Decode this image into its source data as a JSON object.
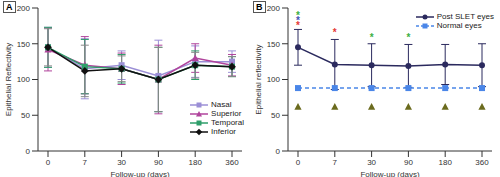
{
  "chart_data": [
    {
      "type": "line",
      "title": "A",
      "x_label": "Follow-up (days)",
      "y_label": "Epithelial Reflectivity",
      "categories": [
        "0",
        "7",
        "30",
        "90",
        "180",
        "360"
      ],
      "ylim": [
        0,
        200
      ],
      "yticks": [
        0,
        50,
        100,
        150,
        200
      ],
      "grid": false,
      "legend": "lower right",
      "series": [
        {
          "name": "Nasal",
          "color": "#9b8fd6",
          "marker": "square",
          "line_style": "solid",
          "values": [
            145,
            115,
            120,
            105,
            125,
            125
          ],
          "errors": [
            28,
            42,
            20,
            50,
            22,
            15
          ]
        },
        {
          "name": "Superior",
          "color": "#b0449c",
          "marker": "triangle",
          "line_style": "solid",
          "values": [
            142,
            120,
            115,
            100,
            130,
            120
          ],
          "errors": [
            30,
            40,
            22,
            48,
            20,
            15
          ]
        },
        {
          "name": "Temporal",
          "color": "#2e9e6a",
          "marker": "square",
          "line_style": "solid",
          "values": [
            145,
            118,
            115,
            100,
            120,
            118
          ],
          "errors": [
            28,
            38,
            20,
            45,
            20,
            14
          ]
        },
        {
          "name": "Inferior",
          "color": "#111111",
          "marker": "diamond",
          "line_style": "solid",
          "values": [
            145,
            112,
            115,
            100,
            120,
            118
          ],
          "errors": [
            26,
            36,
            18,
            45,
            18,
            14
          ]
        }
      ]
    },
    {
      "type": "line",
      "title": "B",
      "x_label": "Follow-up (days)",
      "y_label": "Epithelial reflectivity",
      "categories": [
        "0",
        "7",
        "30",
        "90",
        "180",
        "360"
      ],
      "ylim": [
        0,
        200
      ],
      "yticks": [
        0,
        50,
        100,
        150,
        200
      ],
      "grid": false,
      "legend": "upper right",
      "series": [
        {
          "name": "Post SLET eyes",
          "color": "#2b2a5e",
          "marker": "circle",
          "line_style": "solid",
          "values": [
            145,
            121,
            120,
            119,
            121,
            120
          ],
          "errors": [
            25,
            35,
            30,
            30,
            28,
            30
          ]
        },
        {
          "name": "Normal eyes",
          "color": "#4a86e8",
          "marker": "square",
          "line_style": "dashed",
          "values": [
            88,
            88,
            88,
            88,
            88,
            88
          ]
        },
        {
          "color": "#6b6b1e",
          "marker": "triangle",
          "line_style": "none",
          "values": [
            62,
            62,
            62,
            62,
            62,
            62
          ]
        }
      ],
      "annotations": [
        {
          "x": "0",
          "y": 190,
          "text": "*",
          "color": "#3cb043"
        },
        {
          "x": "0",
          "y": 183,
          "text": "*",
          "color": "#3f51b5"
        },
        {
          "x": "0",
          "y": 176,
          "text": "*",
          "color": "#e53935"
        },
        {
          "x": "7",
          "y": 167,
          "text": "*",
          "color": "#e53935"
        },
        {
          "x": "30",
          "y": 160,
          "text": "*",
          "color": "#3cb043"
        },
        {
          "x": "90",
          "y": 160,
          "text": "*",
          "color": "#3cb043"
        }
      ]
    }
  ]
}
